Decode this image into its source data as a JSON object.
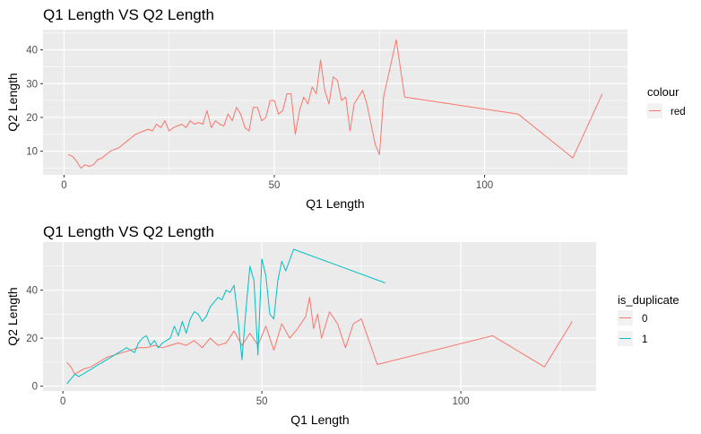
{
  "chart_data": [
    {
      "type": "line",
      "title": "Q1 Length VS Q2 Length",
      "xlabel": "Q1 Length",
      "ylabel": "Q2 Length",
      "xlim": [
        -5,
        134
      ],
      "ylim": [
        3,
        46
      ],
      "xticks": [
        0,
        50,
        100
      ],
      "yticks": [
        10,
        20,
        30,
        40
      ],
      "grid": true,
      "legend": {
        "title": "colour",
        "position": "right"
      },
      "series": [
        {
          "name": "red",
          "color": "#F8766D",
          "x": [
            1,
            2,
            3,
            4,
            5,
            6,
            7,
            8,
            9,
            10,
            11,
            12,
            13,
            14,
            15,
            16,
            17,
            18,
            19,
            20,
            21,
            22,
            23,
            24,
            25,
            26,
            27,
            28,
            29,
            30,
            31,
            32,
            33,
            34,
            35,
            36,
            37,
            38,
            39,
            40,
            41,
            42,
            43,
            44,
            45,
            46,
            47,
            48,
            49,
            50,
            51,
            52,
            53,
            54,
            55,
            56,
            57,
            58,
            59,
            60,
            61,
            62,
            63,
            64,
            65,
            66,
            67,
            68,
            69,
            70,
            71,
            72,
            73,
            74,
            75,
            76,
            79,
            81,
            108,
            121,
            128
          ],
          "y": [
            9,
            8.5,
            7,
            5,
            6,
            5.5,
            6,
            7.5,
            8,
            9,
            10,
            10.5,
            11,
            12,
            13,
            14,
            15,
            15.5,
            16,
            16.5,
            16,
            18,
            17,
            19,
            16,
            17,
            17.5,
            18,
            17,
            19,
            18,
            18.5,
            18,
            22,
            17,
            19,
            18,
            17.5,
            21,
            19,
            23,
            21,
            17,
            16,
            23,
            23,
            19,
            20,
            25,
            25,
            21,
            22,
            27,
            27,
            15,
            22,
            26,
            24,
            29,
            27,
            37,
            28,
            24,
            32,
            31,
            25,
            26,
            16,
            24,
            26,
            28,
            24,
            18,
            12,
            9,
            26,
            43,
            26,
            21,
            8,
            27
          ]
        }
      ]
    },
    {
      "type": "line",
      "title": "Q1 Length VS Q2 Length",
      "xlabel": "Q1 Length",
      "ylabel": "Q2 Length",
      "xlim": [
        -5,
        134
      ],
      "ylim": [
        -2,
        60
      ],
      "xticks": [
        0,
        50,
        100
      ],
      "yticks": [
        0,
        20,
        40
      ],
      "grid": true,
      "legend": {
        "title": "is_duplicate",
        "position": "right"
      },
      "series": [
        {
          "name": "0",
          "color": "#F8766D",
          "x": [
            1,
            2,
            3,
            5,
            7,
            9,
            11,
            13,
            15,
            17,
            19,
            21,
            23,
            25,
            27,
            29,
            31,
            33,
            35,
            37,
            39,
            41,
            43,
            45,
            47,
            49,
            51,
            53,
            55,
            57,
            59,
            61,
            62,
            63,
            64,
            65,
            67,
            69,
            71,
            73,
            75,
            79,
            108,
            121,
            128
          ],
          "y": [
            10,
            8,
            5,
            7,
            8,
            10,
            12,
            13,
            14,
            15,
            16,
            16,
            17,
            16,
            17,
            18,
            17,
            19,
            16,
            20,
            17,
            18,
            23,
            17,
            22,
            17,
            25,
            15,
            26,
            20,
            24,
            29,
            37,
            24,
            30,
            20,
            31,
            26,
            16,
            26,
            28,
            9,
            21,
            8,
            27
          ]
        },
        {
          "name": "1",
          "color": "#00BFC4",
          "x": [
            1,
            2,
            3,
            4,
            5,
            6,
            7,
            8,
            9,
            10,
            11,
            12,
            13,
            14,
            15,
            16,
            17,
            18,
            19,
            20,
            21,
            22,
            23,
            24,
            25,
            26,
            27,
            28,
            29,
            30,
            31,
            32,
            33,
            34,
            35,
            36,
            37,
            38,
            39,
            40,
            41,
            42,
            43,
            44,
            45,
            46,
            47,
            48,
            49,
            50,
            51,
            52,
            53,
            54,
            55,
            56,
            58,
            81
          ],
          "y": [
            1,
            3,
            5,
            4,
            5,
            6,
            7,
            8,
            9,
            10,
            11,
            12,
            13,
            14,
            15,
            16,
            15,
            14,
            18,
            20,
            21,
            17,
            19,
            16,
            18,
            19,
            20,
            25,
            21,
            27,
            22,
            28,
            31,
            30,
            27,
            29,
            33,
            35,
            37,
            36,
            40,
            39,
            42,
            28,
            11,
            32,
            50,
            44,
            13,
            53,
            46,
            30,
            28,
            44,
            52,
            48,
            57,
            43
          ]
        }
      ]
    }
  ]
}
